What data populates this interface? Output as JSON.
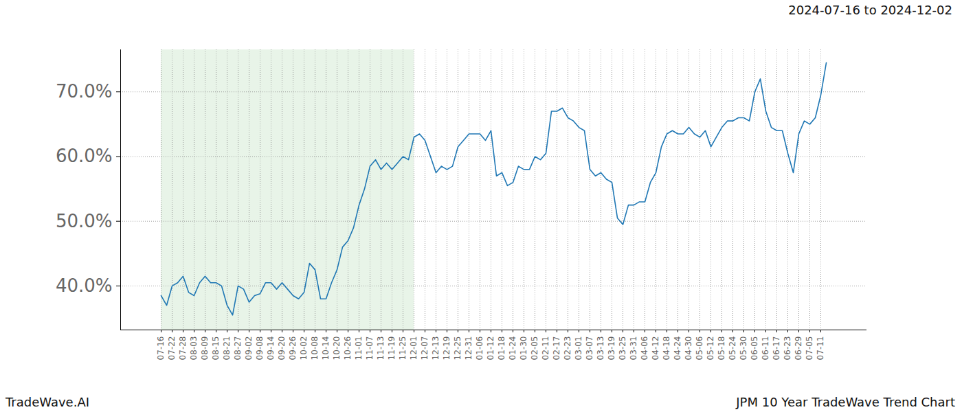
{
  "chart_data": {
    "type": "line",
    "title": "2024-07-16 to 2024-12-02",
    "source": "TradeWave.AI",
    "caption": "JPM 10 Year TradeWave Trend Chart",
    "categories": [
      "07-16",
      null,
      "07-22",
      null,
      "07-28",
      null,
      "08-03",
      null,
      "08-09",
      null,
      "08-15",
      null,
      "08-21",
      null,
      "08-27",
      null,
      "09-02",
      null,
      "09-08",
      null,
      "09-14",
      null,
      "09-20",
      null,
      "09-26",
      null,
      "10-02",
      null,
      "10-08",
      null,
      "10-14",
      null,
      "10-20",
      null,
      "10-26",
      null,
      "11-01",
      null,
      "11-07",
      null,
      "11-13",
      null,
      "11-19",
      null,
      "11-25",
      null,
      "12-01",
      null,
      "12-07",
      null,
      "12-13",
      null,
      "12-19",
      null,
      "12-25",
      null,
      "12-31",
      null,
      "01-06",
      null,
      "01-12",
      null,
      "01-18",
      null,
      "01-24",
      null,
      "01-30",
      null,
      "02-05",
      null,
      "02-11",
      null,
      "02-17",
      null,
      "02-23",
      null,
      "03-01",
      null,
      "03-07",
      null,
      "03-13",
      null,
      "03-19",
      null,
      "03-25",
      null,
      "03-31",
      null,
      "04-06",
      null,
      "04-12",
      null,
      "04-18",
      null,
      "04-24",
      null,
      "04-30",
      null,
      "05-06",
      null,
      "05-12",
      null,
      "05-18",
      null,
      "05-24",
      null,
      "05-30",
      null,
      "06-05",
      null,
      "06-11",
      null,
      "06-17",
      null,
      "06-23",
      null,
      "06-29",
      null,
      "07-05",
      null,
      "07-11",
      null
    ],
    "values": [
      38.5,
      37,
      40,
      40.5,
      41.5,
      39,
      38.5,
      40.5,
      41.5,
      40.5,
      40.5,
      40,
      37,
      35.5,
      40,
      39.5,
      37.5,
      38.5,
      38.8,
      40.5,
      40.5,
      39.5,
      40.5,
      39.5,
      38.5,
      38,
      39,
      43.5,
      42.5,
      38,
      38,
      40.5,
      42.5,
      46,
      47,
      49,
      52.5,
      55,
      58.5,
      59.5,
      58,
      59,
      58,
      59,
      60,
      59.5,
      63,
      63.5,
      62.5,
      60,
      57.5,
      58.5,
      58,
      58.5,
      61.5,
      62.5,
      63.5,
      63.5,
      63.5,
      62.5,
      64,
      57,
      57.5,
      55.5,
      56,
      58.5,
      58,
      58,
      60,
      59.5,
      60.5,
      67,
      67,
      67.5,
      66,
      65.5,
      64.5,
      64,
      58,
      57,
      57.5,
      56.5,
      56,
      50.5,
      49.5,
      52.5,
      52.5,
      53,
      53,
      56,
      57.5,
      61.5,
      63.5,
      64,
      63.5,
      63.5,
      64.5,
      63.5,
      63,
      64,
      61.5,
      63,
      64.5,
      65.5,
      65.5,
      66,
      66,
      65.5,
      70,
      72,
      67,
      64.5,
      64,
      64,
      60.5,
      57.5,
      63.5,
      65.5,
      65,
      66,
      69.5,
      74.5
    ],
    "color": "#1f77b4",
    "highlight": {
      "from": "07-16",
      "to": "12-01"
    },
    "ylim": [
      33.2,
      76.5
    ],
    "yticks": [
      {
        "value": 40,
        "label": "40.0%"
      },
      {
        "value": 50,
        "label": "50.0%"
      },
      {
        "value": 60,
        "label": "60.0%"
      },
      {
        "value": 70,
        "label": "70.0%"
      }
    ],
    "grid": true
  }
}
